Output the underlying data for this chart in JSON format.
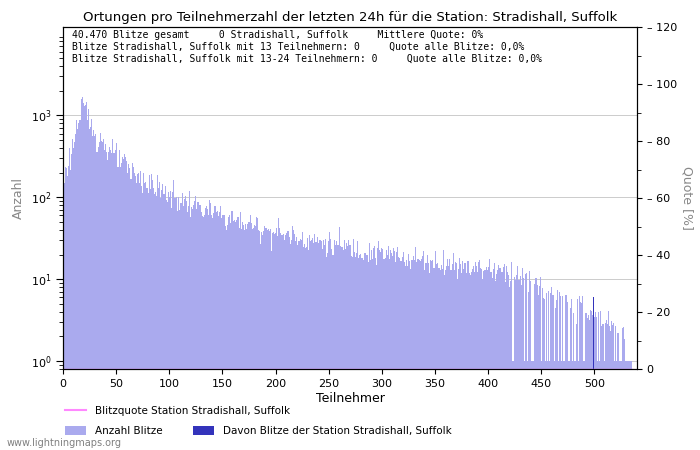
{
  "title": "Ortungen pro Teilnehmerzahl der letzten 24h für die Station: Stradishall, Suffolk",
  "annotation_lines": [
    "40.470 Blitze gesamt     0 Stradishall, Suffolk     Mittlere Quote: 0%",
    "Blitze Stradishall, Suffolk mit 13 Teilnehmern: 0     Quote alle Blitze: 0,0%",
    "Blitze Stradishall, Suffolk mit 13-24 Teilnehmern: 0     Quote alle Blitze: 0,0%"
  ],
  "xlabel": "Teilnehmer",
  "ylabel_left": "Anzahl",
  "ylabel_right": "Quote [%]",
  "xlim": [
    0,
    540
  ],
  "ylim_right": [
    0,
    120
  ],
  "bar_color": "#aaaaee",
  "bar_color2": "#3333bb",
  "line_color": "#ff88ff",
  "watermark": "www.lightningmaps.org",
  "legend_items": [
    "Anzahl Blitze",
    "Davon Blitze der Station Stradishall, Suffolk",
    "Blitzquote Station Stradishall, Suffolk"
  ],
  "xticks": [
    0,
    50,
    100,
    150,
    200,
    250,
    300,
    350,
    400,
    450,
    500
  ],
  "yticks_right": [
    0,
    20,
    40,
    60,
    80,
    100,
    120
  ],
  "yticks_left": [
    1,
    10,
    100,
    1000
  ],
  "background_color": "#ffffff",
  "grid_color": "#cccccc"
}
